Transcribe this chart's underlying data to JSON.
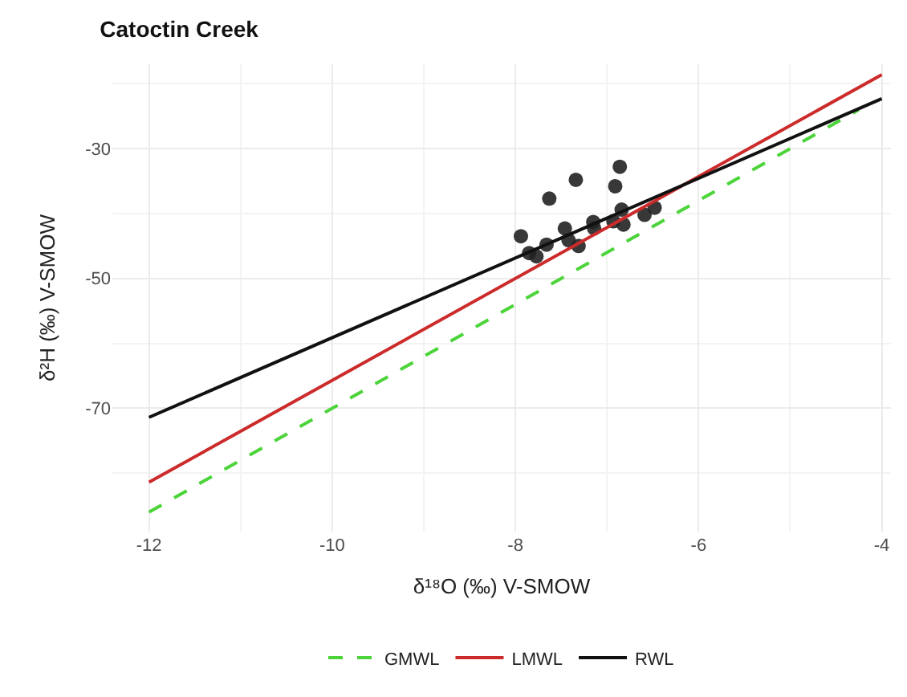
{
  "chart_data": {
    "type": "scatter",
    "title": "Catoctin Creek",
    "xlabel": "δ¹⁸O (‰) V-SMOW",
    "ylabel": "δ²H (‰) V-SMOW",
    "xlim": [
      -12.4,
      -3.9
    ],
    "ylim": [
      -89,
      -17
    ],
    "xticks": [
      -12,
      -10,
      -8,
      -6,
      -4
    ],
    "yticks": [
      -70,
      -50,
      -30
    ],
    "grid": true,
    "legend": "bottom",
    "series": [
      {
        "color": "#222222",
        "marker": "circle",
        "x": [
          -7.94,
          -7.85,
          -7.77,
          -7.66,
          -7.63,
          -7.46,
          -7.42,
          -7.34,
          -7.31,
          -7.15,
          -7.14,
          -6.93,
          -6.91,
          -6.86,
          -6.84,
          -6.82,
          -6.59,
          -6.48
        ],
        "values": [
          -43.5,
          -46.1,
          -46.6,
          -44.8,
          -37.7,
          -42.3,
          -44.1,
          -34.8,
          -45.0,
          -41.3,
          -42.3,
          -41.2,
          -35.8,
          -32.8,
          -39.4,
          -41.7,
          -40.2,
          -39.1
        ]
      },
      {
        "type": "line",
        "name": "GMWL",
        "color": "#4cd43a",
        "line_style": "dashed",
        "marker": "none",
        "x": [
          -12,
          -4.25
        ],
        "values": [
          -86,
          -24
        ]
      },
      {
        "type": "line",
        "name": "LMWL",
        "color": "#cc2b2b",
        "line_style": "solid",
        "marker": "none",
        "x": [
          -12,
          -4
        ],
        "values": [
          -81.4,
          -18.6
        ]
      },
      {
        "type": "line",
        "name": "RWL",
        "color": "#111111",
        "line_style": "solid",
        "marker": "none",
        "x": [
          -12,
          -4
        ],
        "values": [
          -71.4,
          -22.3
        ]
      }
    ]
  }
}
